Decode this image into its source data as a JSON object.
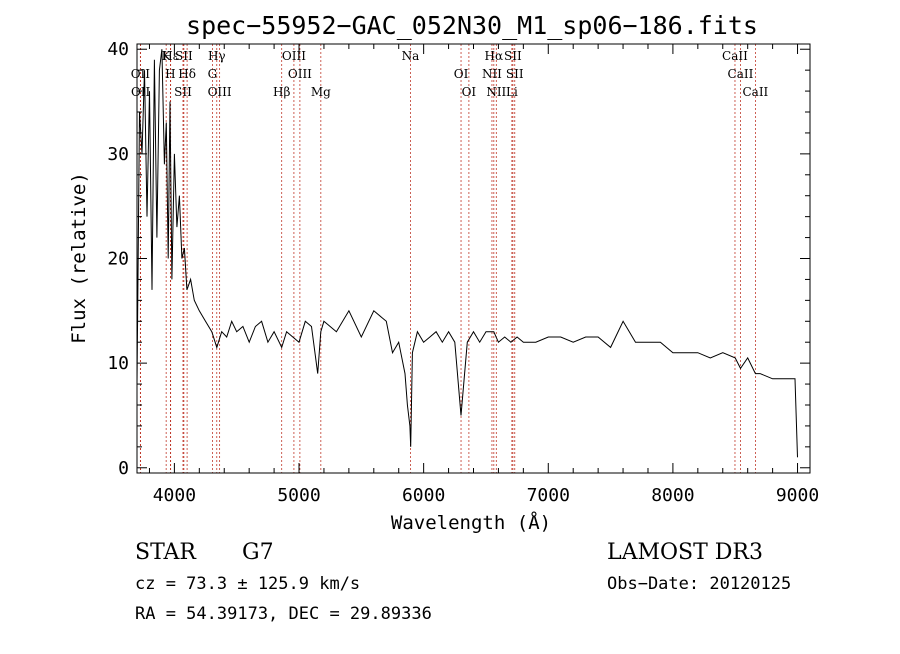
{
  "chart_data": {
    "type": "line",
    "title": "spec−55952−GAC_052N30_M1_sp06−186.fits",
    "xlabel": "Wavelength (Å)",
    "ylabel": "Flux (relative)",
    "xlim": [
      3700,
      9100
    ],
    "ylim": [
      -0.5,
      40.5
    ],
    "xticks": [
      4000,
      5000,
      6000,
      7000,
      8000,
      9000
    ],
    "xtick_labels": [
      "4000",
      "5000",
      "6000",
      "7000",
      "8000",
      "9000"
    ],
    "yticks": [
      0,
      10,
      20,
      30,
      40
    ],
    "ytick_labels": [
      "0",
      "10",
      "20",
      "30",
      "40"
    ],
    "grid": false,
    "series": [
      {
        "name": "flux",
        "x": [
          3700,
          3720,
          3740,
          3760,
          3780,
          3800,
          3820,
          3840,
          3860,
          3880,
          3900,
          3920,
          3935,
          3950,
          3965,
          3980,
          4000,
          4020,
          4040,
          4060,
          4080,
          4100,
          4130,
          4160,
          4200,
          4250,
          4300,
          4340,
          4380,
          4420,
          4460,
          4500,
          4550,
          4600,
          4650,
          4700,
          4750,
          4800,
          4861,
          4900,
          4950,
          5000,
          5050,
          5100,
          5150,
          5175,
          5200,
          5300,
          5400,
          5500,
          5600,
          5700,
          5750,
          5800,
          5850,
          5870,
          5890,
          5896,
          5910,
          5950,
          6000,
          6050,
          6100,
          6150,
          6200,
          6250,
          6300,
          6350,
          6400,
          6450,
          6500,
          6563,
          6600,
          6650,
          6700,
          6750,
          6800,
          6900,
          7000,
          7100,
          7200,
          7300,
          7400,
          7500,
          7600,
          7650,
          7700,
          7800,
          7900,
          8000,
          8100,
          8200,
          8300,
          8400,
          8500,
          8542,
          8600,
          8662,
          8700,
          8800,
          8900,
          8980,
          9000
        ],
        "y": [
          8,
          34,
          30,
          38,
          24,
          36,
          17,
          39,
          22,
          38,
          40,
          29,
          33,
          20,
          35,
          18,
          30,
          23,
          26,
          20,
          21,
          17,
          18,
          16,
          15,
          14,
          13,
          11.5,
          13,
          12.5,
          14,
          13,
          13.5,
          12,
          13.5,
          14,
          12,
          13,
          11.5,
          13,
          12.5,
          12,
          14,
          13.5,
          9,
          13,
          14,
          13,
          15,
          12.5,
          15,
          14,
          11,
          12,
          9,
          6,
          4,
          2,
          11,
          13,
          12,
          12.5,
          13,
          12,
          13,
          12,
          5,
          12,
          13,
          12,
          13,
          13,
          12,
          12.5,
          12,
          12.5,
          12,
          12,
          12.5,
          12.5,
          12,
          12.5,
          12.5,
          11.5,
          14,
          13,
          12,
          12,
          12,
          11,
          11,
          11,
          10.5,
          11,
          10.5,
          9.5,
          10.5,
          9,
          9,
          8.5,
          8.5,
          8.5,
          1
        ]
      }
    ],
    "lines": [
      {
        "label": "Hε",
        "x": 3970
      },
      {
        "label": "OII",
        "x": 3727
      },
      {
        "label": "OII",
        "x": 3729
      },
      {
        "label": "K",
        "x": 3934
      },
      {
        "label": "H",
        "x": 3968
      },
      {
        "label": "SII",
        "x": 4069
      },
      {
        "label": "SII",
        "x": 4076
      },
      {
        "label": "Hδ",
        "x": 4102
      },
      {
        "label": "OIII",
        "x": 4363
      },
      {
        "label": "Hγ",
        "x": 4340
      },
      {
        "label": "G",
        "x": 4305
      },
      {
        "label": "Hβ",
        "x": 4861
      },
      {
        "label": "OIII",
        "x": 4959
      },
      {
        "label": "OIII",
        "x": 5007
      },
      {
        "label": "Mg",
        "x": 5175
      },
      {
        "label": "Na",
        "x": 5894
      },
      {
        "label": "OI",
        "x": 6300
      },
      {
        "label": "OI",
        "x": 6363
      },
      {
        "label": "Hα",
        "x": 6563
      },
      {
        "label": "NII",
        "x": 6548
      },
      {
        "label": "NII",
        "x": 6583
      },
      {
        "label": "SII",
        "x": 6716
      },
      {
        "label": "SII",
        "x": 6731
      },
      {
        "label": "Li",
        "x": 6708
      },
      {
        "label": "CaII",
        "x": 8498
      },
      {
        "label": "CaII",
        "x": 8542
      },
      {
        "label": "CaII",
        "x": 8662
      }
    ],
    "line_color": "#c0392b"
  },
  "info": {
    "object_class": "STAR",
    "subclass": "G7",
    "survey": "LAMOST DR3",
    "cz": "cz = 73.3 ± 125.9 km/s",
    "obs_date": "Obs−Date: 20120125",
    "coords": "RA =  54.39173, DEC =  29.89336"
  }
}
